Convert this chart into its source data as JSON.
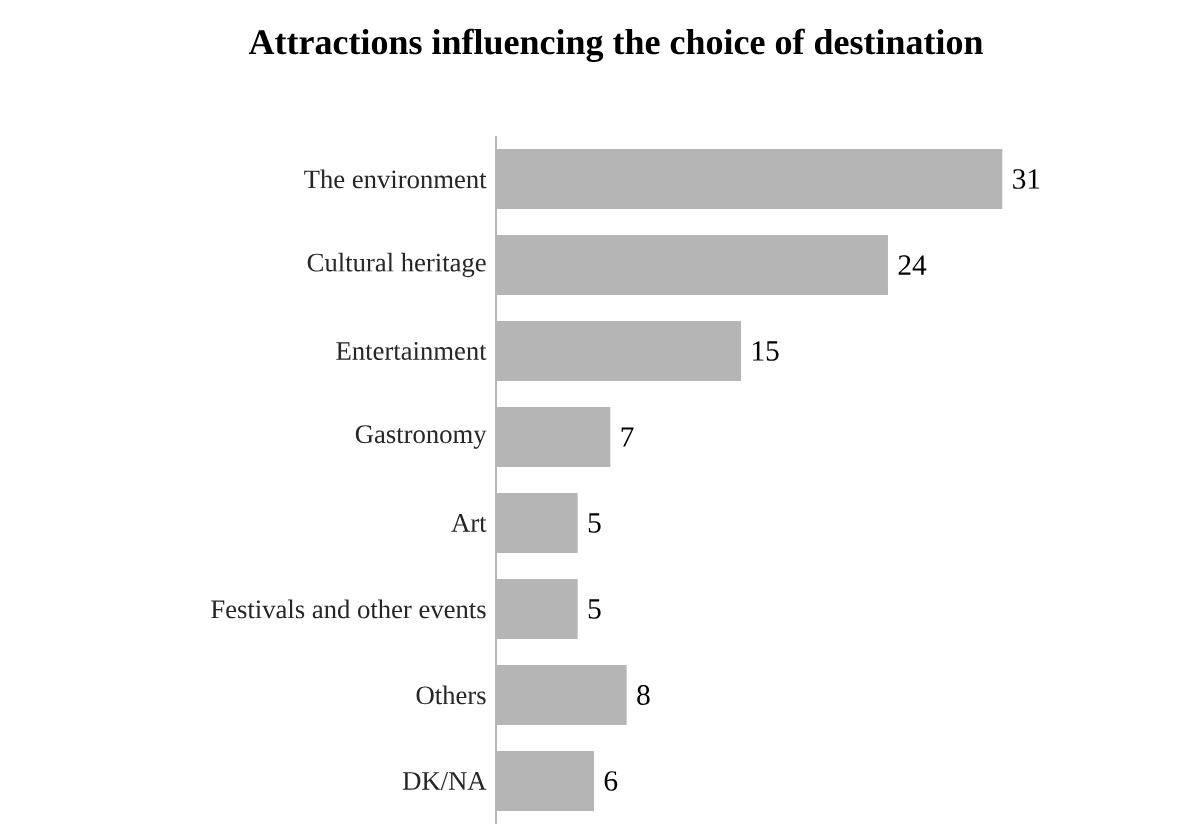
{
  "chart_data": {
    "type": "bar",
    "orientation": "horizontal",
    "title": "Attractions influencing the choice of destination",
    "categories": [
      "The environment",
      "Cultural heritage",
      "Entertainment",
      "Gastronomy",
      "Art",
      "Festivals and other events",
      "Others",
      "DK/NA"
    ],
    "values": [
      31,
      24,
      15,
      7,
      5,
      5,
      8,
      6
    ],
    "color": "#b5b5b5",
    "data_labels": true
  }
}
